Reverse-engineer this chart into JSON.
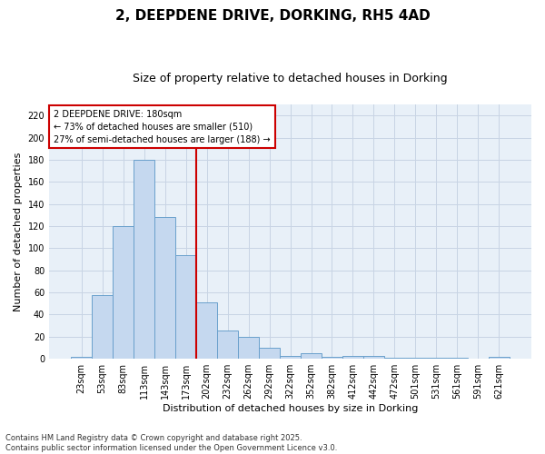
{
  "title": "2, DEEPDENE DRIVE, DORKING, RH5 4AD",
  "subtitle": "Size of property relative to detached houses in Dorking",
  "xlabel": "Distribution of detached houses by size in Dorking",
  "ylabel": "Number of detached properties",
  "categories": [
    "23sqm",
    "53sqm",
    "83sqm",
    "113sqm",
    "143sqm",
    "173sqm",
    "202sqm",
    "232sqm",
    "262sqm",
    "292sqm",
    "322sqm",
    "352sqm",
    "382sqm",
    "412sqm",
    "442sqm",
    "472sqm",
    "501sqm",
    "531sqm",
    "561sqm",
    "591sqm",
    "621sqm"
  ],
  "values": [
    2,
    58,
    120,
    180,
    128,
    94,
    51,
    26,
    20,
    10,
    3,
    5,
    2,
    3,
    3,
    1,
    1,
    1,
    1,
    0,
    2
  ],
  "bar_color": "#c5d8ef",
  "bar_edge_color": "#6aa0cc",
  "vline_color": "#cc0000",
  "annotation_line1": "2 DEEPDENE DRIVE: 180sqm",
  "annotation_line2": "← 73% of detached houses are smaller (510)",
  "annotation_line3": "27% of semi-detached houses are larger (188) →",
  "annotation_box_color": "#ffffff",
  "annotation_box_edge_color": "#cc0000",
  "ylim": [
    0,
    230
  ],
  "yticks": [
    0,
    20,
    40,
    60,
    80,
    100,
    120,
    140,
    160,
    180,
    200,
    220
  ],
  "background_color": "#e8f0f8",
  "grid_color": "#c8d4e4",
  "footer_line1": "Contains HM Land Registry data © Crown copyright and database right 2025.",
  "footer_line2": "Contains public sector information licensed under the Open Government Licence v3.0.",
  "title_fontsize": 11,
  "subtitle_fontsize": 9,
  "ylabel_fontsize": 8,
  "xlabel_fontsize": 8,
  "tick_fontsize": 7,
  "annotation_fontsize": 7,
  "footer_fontsize": 6
}
